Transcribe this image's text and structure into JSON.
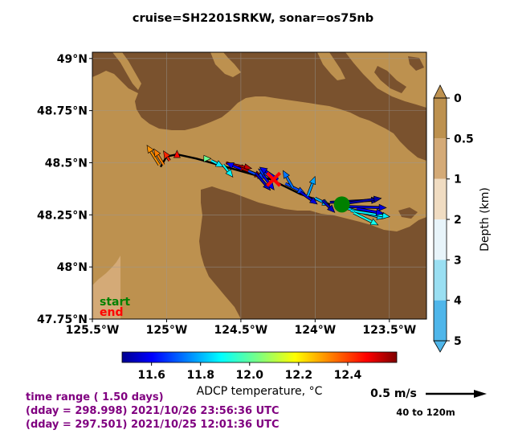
{
  "title": "cruise=SH2201SRKW,   sonar=os75nb",
  "map": {
    "lat_ticks": [
      "49°N",
      "48.75°N",
      "48.5°N",
      "48.25°N",
      "48°N",
      "47.75°N"
    ],
    "lon_ticks": [
      "125.5°W",
      "125°W",
      "124.5°W",
      "124°W",
      "123.5°W"
    ],
    "start_label": "start",
    "end_label": "end",
    "colors": {
      "land": "#7a522e",
      "water_0": "#bd914f",
      "water_05": "#d4aa77",
      "water_1": "#f0dcc2",
      "water_2": "#e8f4fa",
      "water_3": "#9adff2",
      "water_4": "#4fb6ea",
      "track": "#000000",
      "start_marker": "#008000",
      "end_marker": "#ff0000"
    }
  },
  "chart_data": {
    "type": "vector-map",
    "title": "cruise=SH2201SRKW,   sonar=os75nb",
    "xlim": [
      -125.5,
      -123.25
    ],
    "ylim": [
      47.75,
      49.03
    ],
    "track": [
      [
        -125.04,
        48.48
      ],
      [
        -125.0,
        48.53
      ],
      [
        -124.93,
        48.54
      ],
      [
        -124.8,
        48.52
      ],
      [
        -124.55,
        48.47
      ],
      [
        -124.3,
        48.42
      ],
      [
        -124.1,
        48.35
      ],
      [
        -123.9,
        48.3
      ]
    ],
    "start": [
      -123.82,
      48.3
    ],
    "end": [
      -124.28,
      48.42
    ],
    "vectors": [
      {
        "lon": -125.05,
        "lat": 48.49,
        "u": -0.1,
        "v": 0.16,
        "t": 12.3
      },
      {
        "lon": -125.02,
        "lat": 48.49,
        "u": -0.08,
        "v": 0.13,
        "t": 12.32
      },
      {
        "lon": -124.98,
        "lat": 48.51,
        "u": -0.05,
        "v": 0.08,
        "t": 12.42
      },
      {
        "lon": -124.93,
        "lat": 48.53,
        "u": 0.0,
        "v": 0.05,
        "t": 12.45
      },
      {
        "lon": -124.75,
        "lat": 48.52,
        "u": 0.06,
        "v": 0.0,
        "t": 12.02
      },
      {
        "lon": -124.7,
        "lat": 48.51,
        "u": 0.1,
        "v": -0.05,
        "t": 11.88
      },
      {
        "lon": -124.62,
        "lat": 48.49,
        "u": 0.08,
        "v": -0.1,
        "t": 11.9
      },
      {
        "lon": -124.6,
        "lat": 48.5,
        "u": 0.18,
        "v": -0.06,
        "t": 12.46
      },
      {
        "lon": -124.55,
        "lat": 48.49,
        "u": 0.15,
        "v": -0.03,
        "t": 12.52
      },
      {
        "lon": -124.52,
        "lat": 48.48,
        "u": 0.2,
        "v": -0.08,
        "t": 12.55
      },
      {
        "lon": -124.5,
        "lat": 48.47,
        "u": -0.12,
        "v": 0.05,
        "t": 11.62
      },
      {
        "lon": -124.45,
        "lat": 48.46,
        "u": 0.14,
        "v": -0.06,
        "t": 11.7
      },
      {
        "lon": -124.4,
        "lat": 48.45,
        "u": 0.12,
        "v": -0.14,
        "t": 11.55
      },
      {
        "lon": -124.35,
        "lat": 48.44,
        "u": 0.09,
        "v": -0.12,
        "t": 11.6
      },
      {
        "lon": -124.3,
        "lat": 48.43,
        "u": -0.1,
        "v": 0.07,
        "t": 11.68
      },
      {
        "lon": -124.25,
        "lat": 48.42,
        "u": -0.15,
        "v": 0.1,
        "t": 11.6
      },
      {
        "lon": -124.2,
        "lat": 48.4,
        "u": 0.16,
        "v": -0.08,
        "t": 11.7
      },
      {
        "lon": -124.15,
        "lat": 48.38,
        "u": -0.08,
        "v": 0.14,
        "t": 11.75
      },
      {
        "lon": -124.1,
        "lat": 48.36,
        "u": 0.14,
        "v": -0.1,
        "t": 11.58
      },
      {
        "lon": -124.05,
        "lat": 48.34,
        "u": 0.06,
        "v": 0.16,
        "t": 11.8
      },
      {
        "lon": -124.0,
        "lat": 48.33,
        "u": 0.12,
        "v": -0.06,
        "t": 11.82
      },
      {
        "lon": -123.95,
        "lat": 48.32,
        "u": 0.1,
        "v": -0.1,
        "t": 11.55
      },
      {
        "lon": -123.9,
        "lat": 48.31,
        "u": 0.4,
        "v": 0.02,
        "t": 11.5
      },
      {
        "lon": -123.85,
        "lat": 48.3,
        "u": 0.36,
        "v": 0.05,
        "t": 11.52
      },
      {
        "lon": -123.8,
        "lat": 48.29,
        "u": 0.34,
        "v": -0.01,
        "t": 11.58
      },
      {
        "lon": -123.78,
        "lat": 48.28,
        "u": 0.3,
        "v": -0.08,
        "t": 11.85
      },
      {
        "lon": -123.76,
        "lat": 48.27,
        "u": 0.32,
        "v": -0.05,
        "t": 11.88
      },
      {
        "lon": -123.74,
        "lat": 48.26,
        "u": 0.2,
        "v": -0.1,
        "t": 11.92
      },
      {
        "lon": -123.72,
        "lat": 48.28,
        "u": 0.22,
        "v": -0.04,
        "t": 11.6
      }
    ],
    "colorbar_t": {
      "label": "ADCP temperature, °C",
      "range": [
        11.48,
        12.6
      ],
      "ticks": [
        "11.6",
        "11.8",
        "12.0",
        "12.2",
        "12.4"
      ],
      "tick_values": [
        11.6,
        11.8,
        12.0,
        12.2,
        12.4
      ]
    },
    "colorbar_depth": {
      "label": "Depth (km)",
      "ticks": [
        "0",
        "0.5",
        "1",
        "2",
        "3",
        "4",
        "5"
      ],
      "bands": [
        "#bd914f",
        "#d4aa77",
        "#f0dcc2",
        "#e8f4fa",
        "#9adff2",
        "#4fb6ea"
      ]
    },
    "scale": {
      "label": "0.5 m/s",
      "depth_range": "40 to 120m",
      "speed": 0.5
    }
  },
  "footer": {
    "line1": "time range ( 1.50 days)",
    "line2": "(dday = 298.998) 2021/10/26 23:56:36 UTC",
    "line3": "(dday = 297.501) 2021/10/25 12:01:36 UTC"
  }
}
